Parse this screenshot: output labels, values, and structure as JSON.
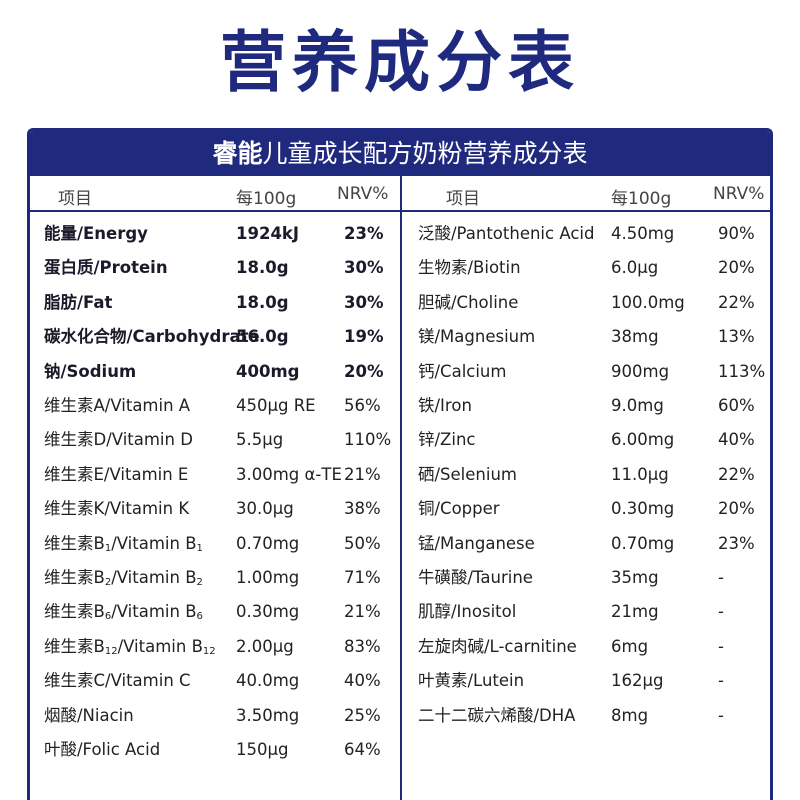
{
  "title": "营养成分表",
  "banner": {
    "brand": "睿能",
    "subtitle": "儿童成长配方奶粉营养成分表"
  },
  "header": {
    "item": "项目",
    "per100g": "每100g",
    "nrv": "NRV%"
  },
  "left_rows": [
    {
      "name": "能量/Energy",
      "value": "1924kJ",
      "nrv": "23%",
      "bold": true
    },
    {
      "name": "蛋白质/Protein",
      "value": "18.0g",
      "nrv": "30%",
      "bold": true
    },
    {
      "name": "脂肪/Fat",
      "value": "18.0g",
      "nrv": "30%",
      "bold": true
    },
    {
      "name": "碳水化合物/Carbohydrate",
      "value": "56.0g",
      "nrv": "19%",
      "bold": true
    },
    {
      "name": "钠/Sodium",
      "value": "400mg",
      "nrv": "20%",
      "bold": true
    },
    {
      "name": "维生素A/Vitamin A",
      "value": "450μg RE",
      "nrv": "56%"
    },
    {
      "name": "维生素D/Vitamin D",
      "value": "5.5μg",
      "nrv": "110%"
    },
    {
      "name": "维生素E/Vitamin E",
      "value": "3.00mg α-TE",
      "nrv": "21%"
    },
    {
      "name": "维生素K/Vitamin K",
      "value": "30.0μg",
      "nrv": "38%"
    },
    {
      "name": "维生素B1/Vitamin B1",
      "value": "0.70mg",
      "nrv": "50%"
    },
    {
      "name": "维生素B2/Vitamin B2",
      "value": "1.00mg",
      "nrv": "71%"
    },
    {
      "name": "维生素B6/Vitamin B6",
      "value": "0.30mg",
      "nrv": "21%"
    },
    {
      "name": "维生素B12/Vitamin B12",
      "value": "2.00μg",
      "nrv": "83%"
    },
    {
      "name": "维生素C/Vitamin C",
      "value": "40.0mg",
      "nrv": "40%"
    },
    {
      "name": "烟酸/Niacin",
      "value": "3.50mg",
      "nrv": "25%"
    },
    {
      "name": "叶酸/Folic Acid",
      "value": "150μg",
      "nrv": "64%"
    }
  ],
  "right_rows": [
    {
      "name": "泛酸/Pantothenic Acid",
      "value": "4.50mg",
      "nrv": "90%"
    },
    {
      "name": "生物素/Biotin",
      "value": "6.0μg",
      "nrv": "20%"
    },
    {
      "name": "胆碱/Choline",
      "value": "100.0mg",
      "nrv": "22%"
    },
    {
      "name": "镁/Magnesium",
      "value": "38mg",
      "nrv": "13%"
    },
    {
      "name": "钙/Calcium",
      "value": "900mg",
      "nrv": "113%"
    },
    {
      "name": "铁/Iron",
      "value": "9.0mg",
      "nrv": "60%"
    },
    {
      "name": "锌/Zinc",
      "value": "6.00mg",
      "nrv": "40%"
    },
    {
      "name": "硒/Selenium",
      "value": "11.0μg",
      "nrv": "22%"
    },
    {
      "name": "铜/Copper",
      "value": "0.30mg",
      "nrv": "20%"
    },
    {
      "name": "锰/Manganese",
      "value": "0.70mg",
      "nrv": "23%"
    },
    {
      "name": "牛磺酸/Taurine",
      "value": "35mg",
      "nrv": "-"
    },
    {
      "name": "肌醇/Inositol",
      "value": "21mg",
      "nrv": "-"
    },
    {
      "name": "左旋肉碱/L-carnitine",
      "value": "6mg",
      "nrv": "-"
    },
    {
      "name": "叶黄素/Lutein",
      "value": "162μg",
      "nrv": "-"
    },
    {
      "name": "二十二碳六烯酸/DHA",
      "value": "8mg",
      "nrv": "-"
    }
  ]
}
